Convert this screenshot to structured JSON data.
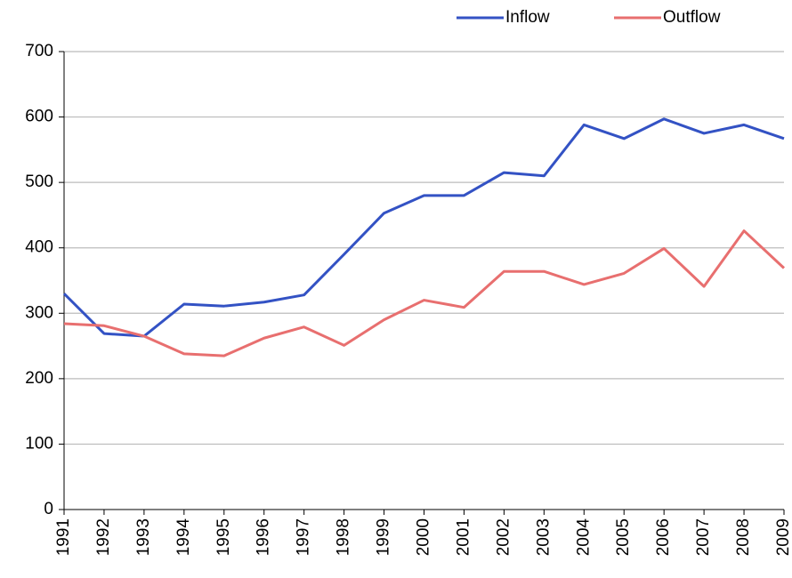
{
  "chart_data": {
    "type": "line",
    "categories": [
      "1991",
      "1992",
      "1993",
      "1994",
      "1995",
      "1996",
      "1997",
      "1998",
      "1999",
      "2000",
      "2001",
      "2002",
      "2003",
      "2004",
      "2005",
      "2006",
      "2007",
      "2008",
      "2009"
    ],
    "series": [
      {
        "name": "Inflow",
        "color": "#3352c4",
        "values": [
          330,
          269,
          265,
          314,
          311,
          317,
          328,
          390,
          453,
          480,
          480,
          515,
          510,
          588,
          567,
          597,
          575,
          588,
          567
        ]
      },
      {
        "name": "Outflow",
        "color": "#e86f6f",
        "values": [
          284,
          281,
          265,
          238,
          235,
          262,
          279,
          251,
          290,
          320,
          309,
          364,
          364,
          344,
          361,
          399,
          341,
          426,
          369
        ]
      }
    ],
    "ylim": [
      0,
      700
    ],
    "yticks": [
      0,
      100,
      200,
      300,
      400,
      500,
      600,
      700
    ],
    "grid": true,
    "legend": "top"
  }
}
